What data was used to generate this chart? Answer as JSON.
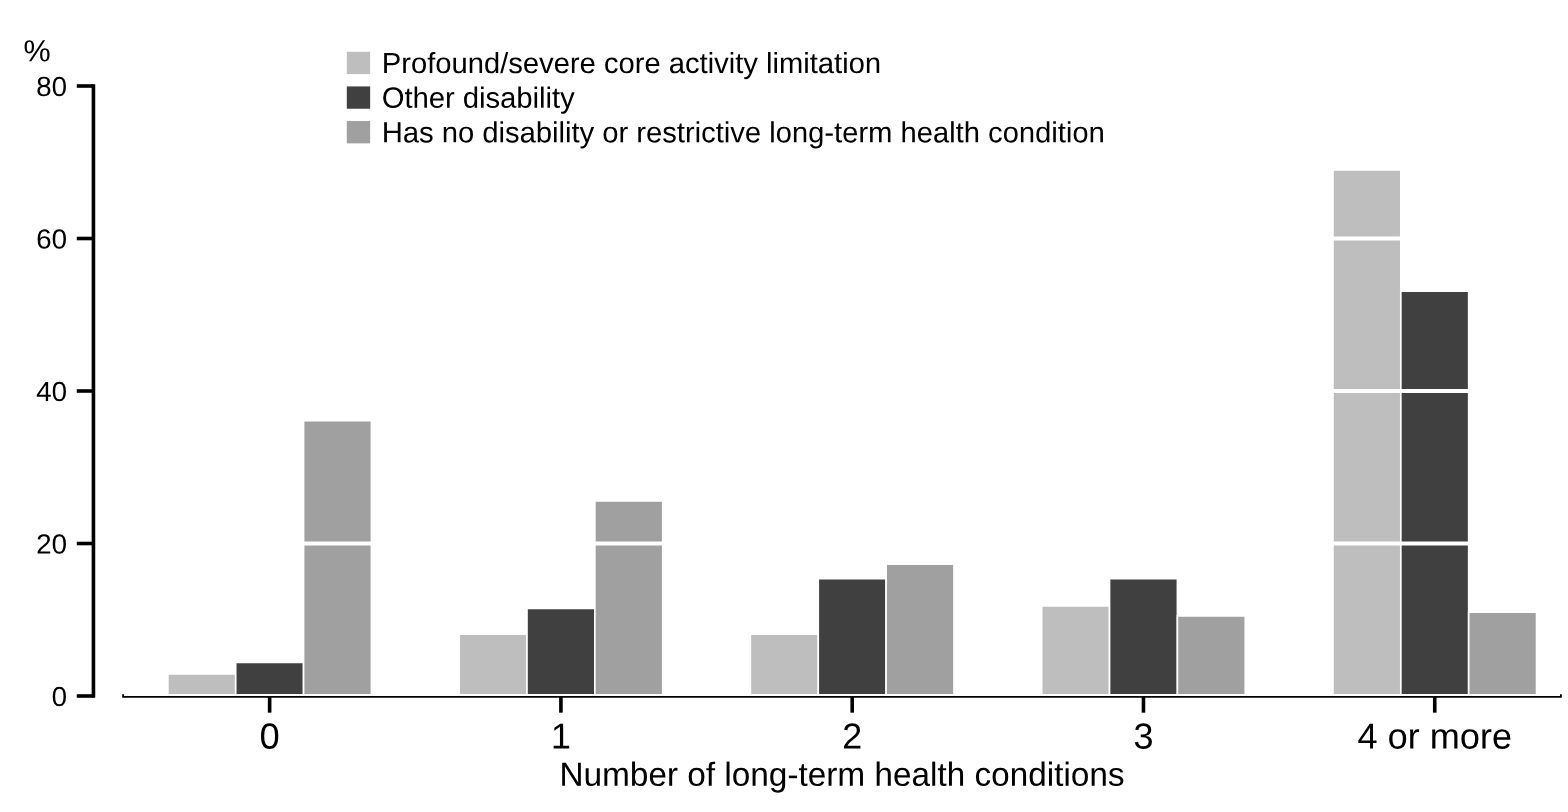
{
  "chart_data": {
    "type": "bar",
    "ylabel": "%",
    "xlabel": "Number of long-term health conditions",
    "categories": [
      "0",
      "1",
      "2",
      "3",
      "4 or more"
    ],
    "series": [
      {
        "name": "Profound/severe core activity limitation",
        "color": "#bebebe",
        "values": [
          2.9,
          8.1,
          8.1,
          11.8,
          69.0
        ]
      },
      {
        "name": "Other disability",
        "color": "#404040",
        "values": [
          4.4,
          11.5,
          15.4,
          15.4,
          53.1
        ]
      },
      {
        "name": "Has no disability or restrictive long-term health condition",
        "color": "#a0a0a0",
        "values": [
          36.1,
          25.6,
          17.3,
          10.5,
          11.0
        ]
      }
    ],
    "ylim": [
      0,
      80
    ],
    "yticks": [
      0,
      20,
      40,
      60,
      80
    ],
    "grid": "y",
    "legend": "top"
  }
}
